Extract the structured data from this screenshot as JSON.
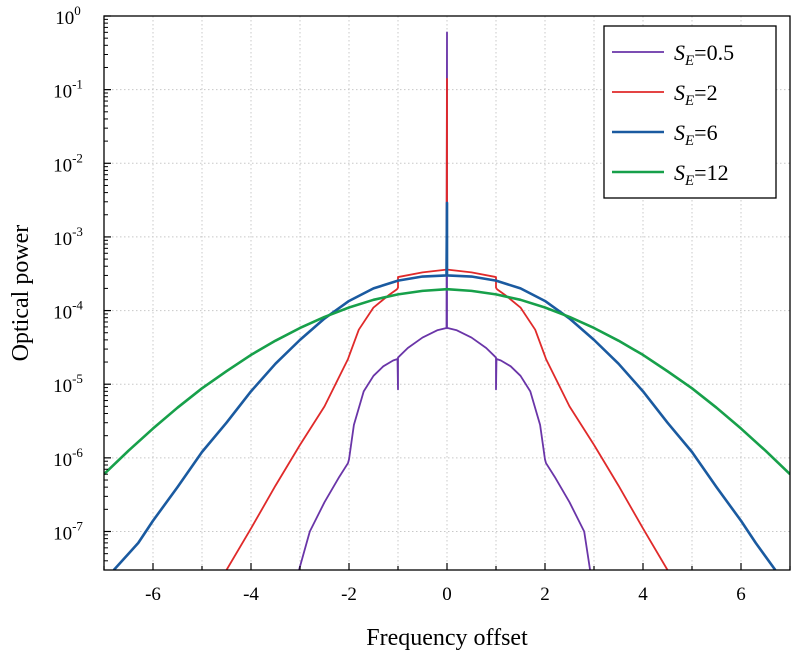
{
  "chart_data": {
    "type": "line",
    "title": "",
    "xlabel": "Frequency offset",
    "ylabel": "Optical power",
    "xlim": [
      -7,
      7
    ],
    "ylim": [
      3e-08,
      1
    ],
    "yscale": "log",
    "grid": true,
    "legend_position": "top-right",
    "x_ticks": [
      -6,
      -4,
      -2,
      0,
      2,
      4,
      6
    ],
    "x_tick_labels": [
      "-6",
      "-4",
      "-2",
      "0",
      "2",
      "4",
      "6"
    ],
    "y_ticks": [
      {
        "value": 1e-07,
        "base": "10",
        "exp": "-7"
      },
      {
        "value": 1e-06,
        "base": "10",
        "exp": "-6"
      },
      {
        "value": 1e-05,
        "base": "10",
        "exp": "-5"
      },
      {
        "value": 0.0001,
        "base": "10",
        "exp": "-4"
      },
      {
        "value": 0.001,
        "base": "10",
        "exp": "-3"
      },
      {
        "value": 0.01,
        "base": "10",
        "exp": "-2"
      },
      {
        "value": 0.1,
        "base": "10",
        "exp": "-1"
      },
      {
        "value": 1,
        "base": "10",
        "exp": "0"
      }
    ],
    "series": [
      {
        "name": "SE=0.5",
        "label_main": "S",
        "label_sub": "E",
        "label_rest": "=0.5",
        "color": "#6a35a8",
        "width": 1.8,
        "points": [
          [
            -3.02,
            3e-08
          ],
          [
            -2.8,
            1e-07
          ],
          [
            -2.5,
            2.5e-07
          ],
          [
            -2.2,
            5.5e-07
          ],
          [
            -2.02,
            8.5e-07
          ],
          [
            -2.0,
            9.5e-07
          ],
          [
            -1.9,
            2.8e-06
          ],
          [
            -1.7,
            8e-06
          ],
          [
            -1.5,
            1.3e-05
          ],
          [
            -1.3,
            1.75e-05
          ],
          [
            -1.1,
            2.1e-05
          ],
          [
            -1.01,
            2.2e-05
          ],
          [
            -1.0,
            8.5e-06
          ],
          [
            -1.0,
            2.3e-05
          ],
          [
            -0.8,
            3.1e-05
          ],
          [
            -0.5,
            4.3e-05
          ],
          [
            -0.2,
            5.4e-05
          ],
          [
            -0.01,
            5.8e-05
          ],
          [
            0,
            0.6
          ],
          [
            0,
            5.8e-05
          ],
          [
            0.01,
            5.8e-05
          ],
          [
            0.2,
            5.4e-05
          ],
          [
            0.5,
            4.3e-05
          ],
          [
            0.8,
            3.1e-05
          ],
          [
            1.0,
            2.3e-05
          ],
          [
            1.0,
            8.5e-06
          ],
          [
            1.01,
            2.2e-05
          ],
          [
            1.1,
            2.1e-05
          ],
          [
            1.3,
            1.75e-05
          ],
          [
            1.5,
            1.3e-05
          ],
          [
            1.7,
            8e-06
          ],
          [
            1.9,
            2.8e-06
          ],
          [
            2.0,
            9.5e-07
          ],
          [
            2.02,
            8.5e-07
          ],
          [
            2.2,
            5.5e-07
          ],
          [
            2.5,
            2.5e-07
          ],
          [
            2.8,
            1e-07
          ],
          [
            2.92,
            3e-08
          ]
        ]
      },
      {
        "name": "SE=2",
        "label_main": "S",
        "label_sub": "E",
        "label_rest": "=2",
        "color": "#e02a2a",
        "width": 1.8,
        "points": [
          [
            -4.5,
            3e-08
          ],
          [
            -4.0,
            1.1e-07
          ],
          [
            -3.5,
            4.2e-07
          ],
          [
            -3.0,
            1.5e-06
          ],
          [
            -2.5,
            5e-06
          ],
          [
            -2.02,
            2.2e-05
          ],
          [
            -2.0,
            2.4e-05
          ],
          [
            -1.8,
            5.5e-05
          ],
          [
            -1.5,
            0.00011
          ],
          [
            -1.2,
            0.00016
          ],
          [
            -1.02,
            0.000195
          ],
          [
            -1.0,
            0.000205
          ],
          [
            -1.0,
            0.000285
          ],
          [
            -0.5,
            0.00033
          ],
          [
            -0.01,
            0.00036
          ],
          [
            0,
            0.14
          ],
          [
            0,
            0.00036
          ],
          [
            0.01,
            0.00036
          ],
          [
            0.5,
            0.00033
          ],
          [
            1.0,
            0.000285
          ],
          [
            1.0,
            0.000205
          ],
          [
            1.02,
            0.000195
          ],
          [
            1.2,
            0.00016
          ],
          [
            1.5,
            0.00011
          ],
          [
            1.8,
            5.5e-05
          ],
          [
            2.0,
            2.4e-05
          ],
          [
            2.02,
            2.2e-05
          ],
          [
            2.5,
            5e-06
          ],
          [
            3.0,
            1.5e-06
          ],
          [
            3.5,
            4.2e-07
          ],
          [
            4.0,
            1.1e-07
          ],
          [
            4.5,
            3e-08
          ]
        ]
      },
      {
        "name": "SE=6",
        "label_main": "S",
        "label_sub": "E",
        "label_rest": "=6",
        "color": "#1a5aa0",
        "width": 2.6,
        "points": [
          [
            -6.8,
            3e-08
          ],
          [
            -6.3,
            7e-08
          ],
          [
            -6.0,
            1.4e-07
          ],
          [
            -5.5,
            4e-07
          ],
          [
            -5.0,
            1.2e-06
          ],
          [
            -4.5,
            3e-06
          ],
          [
            -4.0,
            8e-06
          ],
          [
            -3.5,
            1.9e-05
          ],
          [
            -3.0,
            4e-05
          ],
          [
            -2.5,
            7.8e-05
          ],
          [
            -2.0,
            0.000135
          ],
          [
            -1.5,
            0.0002
          ],
          [
            -1.0,
            0.000255
          ],
          [
            -0.5,
            0.00029
          ],
          [
            -0.01,
            0.0003
          ],
          [
            0,
            0.0029
          ],
          [
            0,
            0.0003
          ],
          [
            0.01,
            0.0003
          ],
          [
            0.5,
            0.00029
          ],
          [
            1.0,
            0.000255
          ],
          [
            1.5,
            0.0002
          ],
          [
            2.0,
            0.000135
          ],
          [
            2.5,
            7.8e-05
          ],
          [
            3.0,
            4e-05
          ],
          [
            3.5,
            1.9e-05
          ],
          [
            4.0,
            8e-06
          ],
          [
            4.5,
            3e-06
          ],
          [
            5.0,
            1.2e-06
          ],
          [
            5.5,
            4e-07
          ],
          [
            6.0,
            1.4e-07
          ],
          [
            6.3,
            7e-08
          ],
          [
            6.7,
            3e-08
          ]
        ]
      },
      {
        "name": "SE=12",
        "label_main": "S",
        "label_sub": "E",
        "label_rest": "=12",
        "color": "#17a04a",
        "width": 2.6,
        "points": [
          [
            -7.0,
            6e-07
          ],
          [
            -6.5,
            1.25e-06
          ],
          [
            -6.0,
            2.5e-06
          ],
          [
            -5.5,
            4.8e-06
          ],
          [
            -5.0,
            8.8e-06
          ],
          [
            -4.5,
            1.5e-05
          ],
          [
            -4.0,
            2.5e-05
          ],
          [
            -3.5,
            3.9e-05
          ],
          [
            -3.0,
            5.8e-05
          ],
          [
            -2.5,
            8.2e-05
          ],
          [
            -2.0,
            0.00011
          ],
          [
            -1.5,
            0.00014
          ],
          [
            -1.0,
            0.000166
          ],
          [
            -0.5,
            0.000185
          ],
          [
            0,
            0.000195
          ],
          [
            0.5,
            0.000185
          ],
          [
            1.0,
            0.000166
          ],
          [
            1.5,
            0.00014
          ],
          [
            2.0,
            0.00011
          ],
          [
            2.5,
            8.2e-05
          ],
          [
            3.0,
            5.8e-05
          ],
          [
            3.5,
            3.9e-05
          ],
          [
            4.0,
            2.5e-05
          ],
          [
            4.5,
            1.5e-05
          ],
          [
            5.0,
            8.8e-06
          ],
          [
            5.5,
            4.8e-06
          ],
          [
            6.0,
            2.5e-06
          ],
          [
            6.5,
            1.25e-06
          ],
          [
            7.0,
            6e-07
          ]
        ]
      }
    ]
  }
}
